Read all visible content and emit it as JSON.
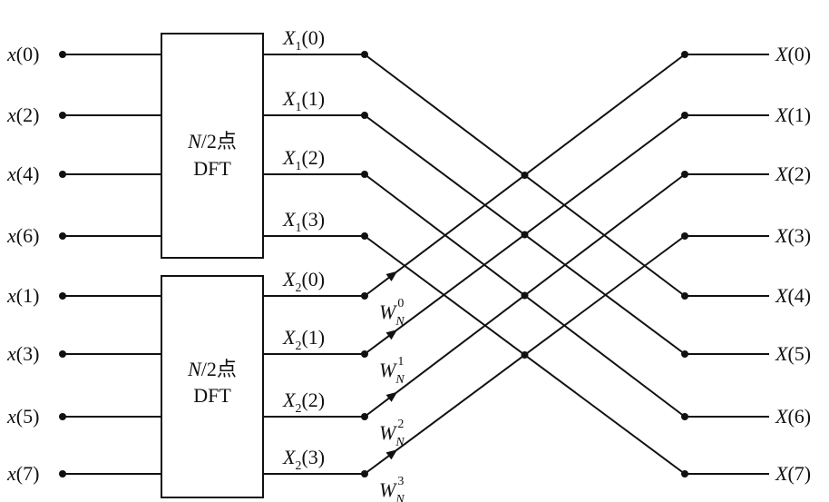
{
  "inputs": [
    {
      "fn": "x",
      "arg": "0"
    },
    {
      "fn": "x",
      "arg": "2"
    },
    {
      "fn": "x",
      "arg": "4"
    },
    {
      "fn": "x",
      "arg": "6"
    },
    {
      "fn": "x",
      "arg": "1"
    },
    {
      "fn": "x",
      "arg": "3"
    },
    {
      "fn": "x",
      "arg": "5"
    },
    {
      "fn": "x",
      "arg": "7"
    }
  ],
  "blocks": [
    {
      "line1_italic": "N",
      "line1_rest": "/2点",
      "line2": "DFT"
    },
    {
      "line1_italic": "N",
      "line1_rest": "/2点",
      "line2": "DFT"
    }
  ],
  "mid_outputs": [
    {
      "base": "X",
      "sub": "1",
      "arg": "(0)"
    },
    {
      "base": "X",
      "sub": "1",
      "arg": "(1)"
    },
    {
      "base": "X",
      "sub": "1",
      "arg": "(2)"
    },
    {
      "base": "X",
      "sub": "1",
      "arg": "(3)"
    },
    {
      "base": "X",
      "sub": "2",
      "arg": "(0)"
    },
    {
      "base": "X",
      "sub": "2",
      "arg": "(1)"
    },
    {
      "base": "X",
      "sub": "2",
      "arg": "(2)"
    },
    {
      "base": "X",
      "sub": "2",
      "arg": "(3)"
    }
  ],
  "twiddles": [
    {
      "base": "W",
      "sub": "N",
      "sup": "0"
    },
    {
      "base": "W",
      "sub": "N",
      "sup": "1"
    },
    {
      "base": "W",
      "sub": "N",
      "sup": "2"
    },
    {
      "base": "W",
      "sub": "N",
      "sup": "3"
    }
  ],
  "outputs": [
    {
      "fn": "X",
      "arg": "0"
    },
    {
      "fn": "X",
      "arg": "1"
    },
    {
      "fn": "X",
      "arg": "2"
    },
    {
      "fn": "X",
      "arg": "3"
    },
    {
      "fn": "X",
      "arg": "4"
    },
    {
      "fn": "X",
      "arg": "5"
    },
    {
      "fn": "X",
      "arg": "6"
    },
    {
      "fn": "X",
      "arg": "7"
    }
  ]
}
